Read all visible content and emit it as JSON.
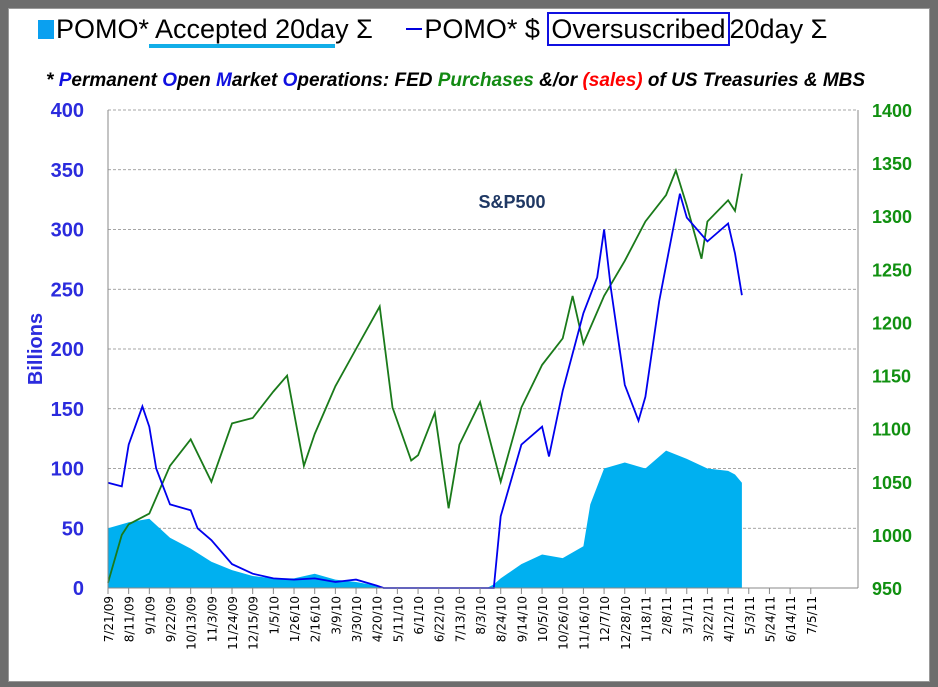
{
  "legend": {
    "accepted": "POMO* Accepted 20day Σ",
    "oversub_pre": "POMO* $ ",
    "oversub_box": "Oversuscribed",
    "oversub_post": "20day Σ"
  },
  "subtitle": [
    "* ",
    "P",
    "ermanent ",
    "O",
    "pen ",
    "M",
    "arket ",
    "O",
    "perations: FED ",
    "Purchases",
    " &/or ",
    "(sales)",
    " of US Treasuries & MBS"
  ],
  "colors": {
    "accepted": "#00b0f0",
    "oversubscribed": "#0000ee",
    "sp500": "#1a7a1a",
    "left_axis": "#2b2bdd",
    "right_axis": "#109010"
  },
  "chart_data": {
    "type": "line",
    "ylabel": "Billions",
    "annotation": "S&P500",
    "ylim": [
      0,
      400
    ],
    "yticks": [
      "0",
      "50",
      "100",
      "150",
      "200",
      "250",
      "300",
      "350",
      "400"
    ],
    "y2lim": [
      950,
      1400
    ],
    "y2ticks": [
      "950",
      "1000",
      "1050",
      "1100",
      "1150",
      "1200",
      "1250",
      "1300",
      "1350",
      "1400"
    ],
    "grid": true,
    "xticks": [
      "7/21/09",
      "8/11/09",
      "9/1/09",
      "9/22/09",
      "10/13/09",
      "11/3/09",
      "11/24/09",
      "12/15/09",
      "1/5/10",
      "1/26/10",
      "2/16/10",
      "3/9/10",
      "3/30/10",
      "4/20/10",
      "5/11/10",
      "6/1/10",
      "6/22/10",
      "7/13/10",
      "8/3/10",
      "8/24/10",
      "9/14/10",
      "10/5/10",
      "10/26/10",
      "11/16/10",
      "12/7/10",
      "12/28/10",
      "1/18/11",
      "2/8/11",
      "3/1/11",
      "3/22/11",
      "4/12/11",
      "5/3/11",
      "5/24/11",
      "6/14/11",
      "7/5/11"
    ],
    "series": [
      {
        "name": "POMO* Accepted 20day Σ",
        "type": "area",
        "axis": "left",
        "x": [
          "2009-07-21",
          "2009-08-11",
          "2009-09-01",
          "2009-09-22",
          "2009-10-13",
          "2009-11-03",
          "2009-11-24",
          "2009-12-15",
          "2010-01-05",
          "2010-01-26",
          "2010-02-16",
          "2010-03-09",
          "2010-03-30",
          "2010-04-20",
          "2010-04-27",
          "2010-08-10",
          "2010-08-17",
          "2010-08-24",
          "2010-09-14",
          "2010-10-05",
          "2010-10-26",
          "2010-11-16",
          "2010-11-23",
          "2010-12-07",
          "2010-12-28",
          "2011-01-18",
          "2011-02-08",
          "2011-03-01",
          "2011-03-22",
          "2011-04-12",
          "2011-04-19",
          "2011-04-26"
        ],
        "values": [
          50,
          55,
          58,
          42,
          33,
          22,
          15,
          10,
          8,
          8,
          12,
          7,
          5,
          2,
          0,
          0,
          3,
          8,
          20,
          28,
          25,
          35,
          70,
          100,
          105,
          100,
          115,
          108,
          100,
          98,
          95,
          88
        ]
      },
      {
        "name": "POMO* $ Oversuscribed 20day Σ",
        "type": "line",
        "axis": "left",
        "x": [
          "2009-07-21",
          "2009-08-04",
          "2009-08-11",
          "2009-08-25",
          "2009-09-01",
          "2009-09-08",
          "2009-09-22",
          "2009-10-13",
          "2009-10-20",
          "2009-11-03",
          "2009-11-24",
          "2009-12-15",
          "2010-01-05",
          "2010-01-26",
          "2010-02-16",
          "2010-03-09",
          "2010-03-30",
          "2010-04-20",
          "2010-04-27",
          "2010-08-17",
          "2010-08-24",
          "2010-09-14",
          "2010-10-05",
          "2010-10-12",
          "2010-10-26",
          "2010-11-16",
          "2010-11-30",
          "2010-12-07",
          "2010-12-14",
          "2010-12-28",
          "2011-01-11",
          "2011-01-18",
          "2011-02-01",
          "2011-02-08",
          "2011-02-22",
          "2011-03-01",
          "2011-03-22",
          "2011-04-12",
          "2011-04-19",
          "2011-04-26"
        ],
        "values": [
          88,
          85,
          120,
          152,
          135,
          100,
          70,
          65,
          50,
          40,
          20,
          12,
          8,
          7,
          8,
          5,
          7,
          2,
          0,
          0,
          60,
          120,
          135,
          110,
          165,
          230,
          260,
          300,
          250,
          170,
          140,
          160,
          240,
          270,
          330,
          310,
          290,
          305,
          280,
          245
        ]
      },
      {
        "name": "S&P500",
        "type": "line",
        "axis": "right",
        "x": [
          "2009-07-21",
          "2009-08-04",
          "2009-08-11",
          "2009-09-01",
          "2009-09-22",
          "2009-10-13",
          "2009-11-03",
          "2009-11-24",
          "2009-12-15",
          "2010-01-05",
          "2010-01-19",
          "2010-02-05",
          "2010-02-16",
          "2010-03-09",
          "2010-03-30",
          "2010-04-23",
          "2010-05-06",
          "2010-05-25",
          "2010-06-01",
          "2010-06-18",
          "2010-07-02",
          "2010-07-13",
          "2010-08-03",
          "2010-08-24",
          "2010-09-14",
          "2010-10-05",
          "2010-10-26",
          "2010-11-05",
          "2010-11-16",
          "2010-12-07",
          "2010-12-28",
          "2011-01-18",
          "2011-02-08",
          "2011-02-18",
          "2011-03-01",
          "2011-03-16",
          "2011-03-22",
          "2011-04-12",
          "2011-04-19",
          "2011-04-26"
        ],
        "values": [
          955,
          1000,
          1010,
          1020,
          1065,
          1090,
          1050,
          1105,
          1110,
          1135,
          1150,
          1065,
          1095,
          1140,
          1175,
          1215,
          1120,
          1070,
          1075,
          1115,
          1025,
          1085,
          1125,
          1050,
          1120,
          1160,
          1185,
          1225,
          1180,
          1225,
          1258,
          1295,
          1320,
          1343,
          1310,
          1260,
          1295,
          1315,
          1305,
          1340
        ]
      }
    ]
  }
}
